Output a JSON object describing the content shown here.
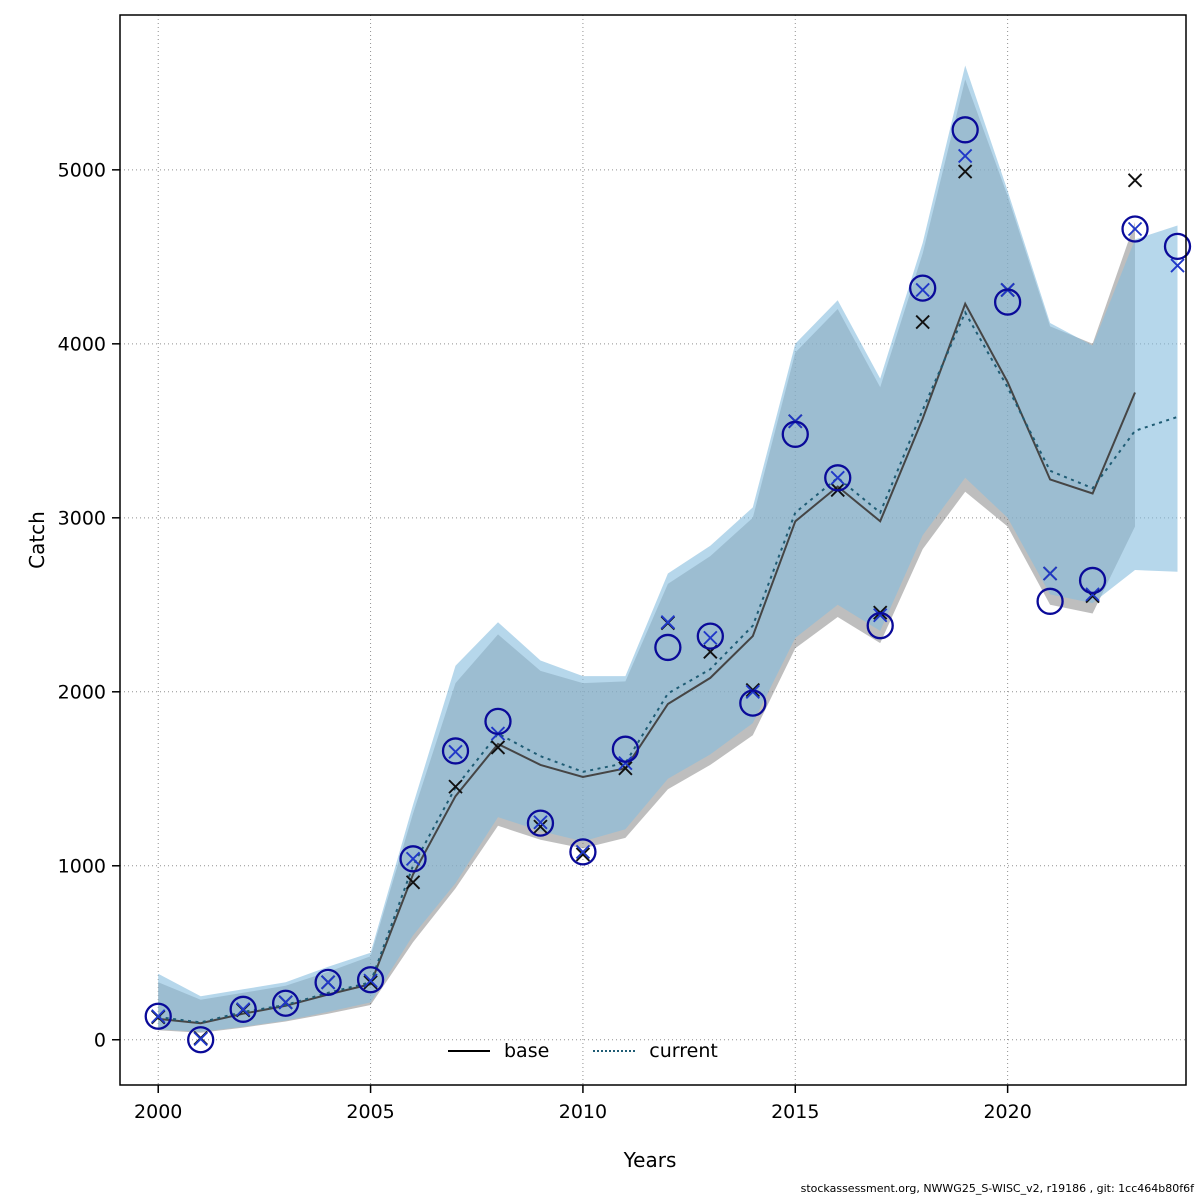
{
  "figure": {
    "xlabel": "Years",
    "ylabel": "Catch",
    "footer": "stockassessment.org, NWWG25_S-WISC_v2, r19186 , git: 1cc464b80f6f"
  },
  "legend": {
    "items": [
      {
        "label": "base",
        "style": "solid",
        "color": "#000000"
      },
      {
        "label": "current",
        "style": "dotted",
        "color": "#1f5c74"
      }
    ]
  },
  "chart_data": {
    "type": "line",
    "title": "",
    "xlabel": "Years",
    "ylabel": "Catch",
    "x_ticks": [
      2000,
      2005,
      2010,
      2015,
      2020
    ],
    "y_ticks": [
      0,
      1000,
      2000,
      3000,
      4000,
      5000
    ],
    "xlim": [
      1999.1,
      2024.2
    ],
    "ylim": [
      -260,
      5890
    ],
    "grid": true,
    "grid_color": "#909090",
    "bands": [
      {
        "name": "base-confidence-band",
        "color": "rgba(125,125,125,0.5)",
        "years": [
          2000,
          2001,
          2002,
          2003,
          2004,
          2005,
          2006,
          2007,
          2008,
          2009,
          2010,
          2011,
          2012,
          2013,
          2014,
          2015,
          2016,
          2017,
          2018,
          2019,
          2020,
          2021,
          2022,
          2023
        ],
        "lower": [
          55,
          40,
          70,
          105,
          150,
          200,
          560,
          870,
          1230,
          1150,
          1100,
          1160,
          1440,
          1580,
          1750,
          2250,
          2430,
          2280,
          2820,
          3150,
          2950,
          2500,
          2450,
          2950
        ],
        "upper": [
          330,
          230,
          270,
          310,
          390,
          480,
          1300,
          2050,
          2330,
          2120,
          2050,
          2060,
          2620,
          2780,
          3000,
          3950,
          4200,
          3750,
          4520,
          5520,
          4850,
          4100,
          4000,
          4700
        ]
      },
      {
        "name": "current-confidence-band",
        "color": "rgba(133,189,222,0.6)",
        "years": [
          2000,
          2001,
          2002,
          2003,
          2004,
          2005,
          2006,
          2007,
          2008,
          2009,
          2010,
          2011,
          2012,
          2013,
          2014,
          2015,
          2016,
          2017,
          2018,
          2019,
          2020,
          2021,
          2022,
          2023,
          2024
        ],
        "lower": [
          60,
          45,
          75,
          110,
          160,
          215,
          600,
          900,
          1280,
          1200,
          1140,
          1210,
          1500,
          1640,
          1820,
          2310,
          2500,
          2350,
          2900,
          3230,
          3000,
          2560,
          2510,
          2700,
          2690
        ],
        "upper": [
          380,
          250,
          290,
          330,
          420,
          500,
          1350,
          2150,
          2400,
          2180,
          2090,
          2090,
          2680,
          2840,
          3060,
          4000,
          4250,
          3800,
          4580,
          5600,
          4880,
          4120,
          3990,
          4600,
          4680
        ]
      }
    ],
    "series": [
      {
        "name": "base",
        "style": "solid",
        "color": "#454545",
        "years": [
          2000,
          2001,
          2002,
          2003,
          2004,
          2005,
          2006,
          2007,
          2008,
          2009,
          2010,
          2011,
          2012,
          2013,
          2014,
          2015,
          2016,
          2017,
          2018,
          2019,
          2020,
          2021,
          2022,
          2023
        ],
        "values": [
          120,
          95,
          150,
          195,
          260,
          320,
          950,
          1400,
          1700,
          1580,
          1510,
          1560,
          1930,
          2080,
          2320,
          2980,
          3180,
          2980,
          3570,
          4230,
          3780,
          3220,
          3140,
          3720
        ]
      },
      {
        "name": "current",
        "style": "dotted",
        "color": "#1f5c74",
        "years": [
          2000,
          2001,
          2002,
          2003,
          2004,
          2005,
          2006,
          2007,
          2008,
          2009,
          2010,
          2011,
          2012,
          2013,
          2014,
          2015,
          2016,
          2017,
          2018,
          2019,
          2020,
          2021,
          2022,
          2023,
          2024
        ],
        "values": [
          130,
          100,
          160,
          200,
          270,
          330,
          1000,
          1450,
          1760,
          1630,
          1540,
          1590,
          1990,
          2130,
          2380,
          3030,
          3230,
          3030,
          3620,
          4180,
          3750,
          3270,
          3170,
          3500,
          3580
        ]
      }
    ],
    "observations": [
      {
        "name": "base-observed-catch",
        "marker": "x",
        "color": "#111111",
        "years": [
          2000,
          2001,
          2002,
          2003,
          2004,
          2005,
          2006,
          2007,
          2008,
          2009,
          2010,
          2011,
          2012,
          2013,
          2014,
          2015,
          2016,
          2017,
          2018,
          2019,
          2020,
          2021,
          2022,
          2023
        ],
        "values": [
          130,
          10,
          170,
          215,
          330,
          330,
          905,
          1455,
          1680,
          1225,
          1065,
          1560,
          2395,
          2230,
          2010,
          3555,
          3160,
          2455,
          4125,
          4990,
          4310,
          2680,
          2550,
          4940
        ]
      },
      {
        "name": "current-observed-catch-cross",
        "marker": "x",
        "color": "#2038c8",
        "years": [
          2000,
          2001,
          2002,
          2003,
          2004,
          2005,
          2006,
          2007,
          2008,
          2009,
          2010,
          2011,
          2012,
          2013,
          2014,
          2015,
          2016,
          2017,
          2018,
          2019,
          2020,
          2021,
          2022,
          2023,
          2024
        ],
        "values": [
          135,
          5,
          175,
          215,
          330,
          340,
          1040,
          1655,
          1760,
          1250,
          1080,
          1590,
          2400,
          2310,
          2000,
          3555,
          3230,
          2440,
          4310,
          5080,
          4310,
          2680,
          2560,
          4660,
          4450
        ]
      },
      {
        "name": "current-observed-catch-circle",
        "marker": "circle",
        "color": "#0a0a99",
        "years": [
          2000,
          2001,
          2002,
          2003,
          2004,
          2005,
          2006,
          2007,
          2008,
          2009,
          2010,
          2011,
          2012,
          2013,
          2014,
          2015,
          2016,
          2017,
          2018,
          2019,
          2020,
          2021,
          2022,
          2023,
          2024
        ],
        "values": [
          135,
          0,
          175,
          210,
          330,
          345,
          1040,
          1660,
          1830,
          1245,
          1080,
          1670,
          2255,
          2320,
          1935,
          3480,
          3230,
          2380,
          4320,
          5230,
          4240,
          2520,
          2640,
          4660,
          4560
        ]
      }
    ]
  }
}
